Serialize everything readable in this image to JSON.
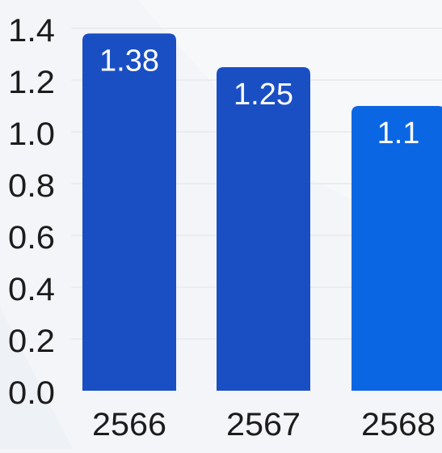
{
  "chart_data": {
    "type": "bar",
    "categories": [
      "2566",
      "2567",
      "2568"
    ],
    "values": [
      1.38,
      1.25,
      1.1
    ],
    "data_labels": [
      "1.38",
      "1.25",
      "1.1"
    ],
    "y_ticks": [
      "0.0",
      "0.2",
      "0.4",
      "0.6",
      "0.8",
      "1.0",
      "1.2",
      "1.4"
    ],
    "ylim": [
      0,
      1.4
    ],
    "grid": true,
    "title": "",
    "xlabel": "",
    "ylabel": ""
  },
  "colors": {
    "bar_1": "#1a4fc4",
    "bar_2": "#1a4fc4",
    "bar_3": "#0b66e4",
    "label_text": "#ffffff",
    "axis_text": "#1c1c1c",
    "grid": "#e3e6ea",
    "background": "#f3f5f8"
  }
}
